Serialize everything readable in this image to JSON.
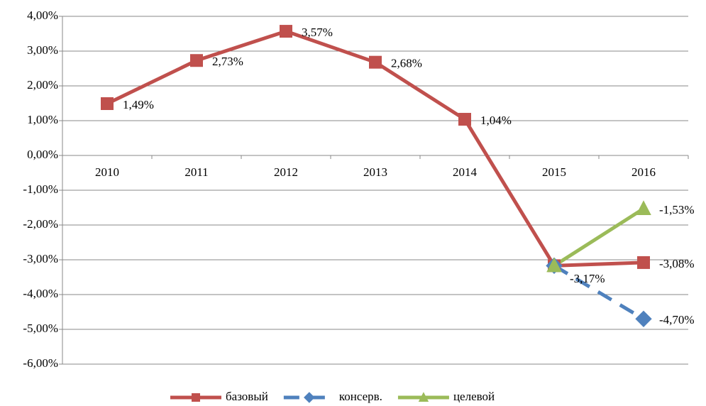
{
  "chart_data": {
    "type": "line",
    "categories": [
      "2010",
      "2011",
      "2012",
      "2013",
      "2014",
      "2015",
      "2016"
    ],
    "series": [
      {
        "name": "базовый",
        "color": "#c0504d",
        "marker": "square",
        "dashed": false,
        "values": [
          1.49,
          2.73,
          3.57,
          2.68,
          1.04,
          -3.17,
          -3.08
        ],
        "value_labels": [
          "1,49%",
          "2,73%",
          "3,57%",
          "2,68%",
          "1,04%",
          "-3,17%",
          "-3,08%"
        ]
      },
      {
        "name": "консерв.",
        "color": "#4f81bd",
        "marker": "diamond",
        "dashed": true,
        "values": [
          null,
          null,
          null,
          null,
          null,
          -3.17,
          -4.7
        ],
        "value_labels": [
          null,
          null,
          null,
          null,
          null,
          null,
          "-4,70%"
        ]
      },
      {
        "name": "целевой",
        "color": "#9bbb59",
        "marker": "triangle",
        "dashed": false,
        "values": [
          null,
          null,
          null,
          null,
          null,
          -3.17,
          -1.53
        ],
        "value_labels": [
          null,
          null,
          null,
          null,
          null,
          null,
          "-1,53%"
        ]
      }
    ],
    "ylim": [
      -6,
      4
    ],
    "yticks": [
      {
        "value": -6,
        "label": "-6,00%"
      },
      {
        "value": -5,
        "label": "-5,00%"
      },
      {
        "value": -4,
        "label": "-4,00%"
      },
      {
        "value": -3,
        "label": "-3,00%"
      },
      {
        "value": -2,
        "label": "-2,00%"
      },
      {
        "value": -1,
        "label": "-1,00%"
      },
      {
        "value": 0,
        "label": "0,00%"
      },
      {
        "value": 1,
        "label": "1,00%"
      },
      {
        "value": 2,
        "label": "2,00%"
      },
      {
        "value": 3,
        "label": "3,00%"
      },
      {
        "value": 4,
        "label": "4,00%"
      }
    ],
    "grid": true,
    "legend": "bottom"
  }
}
